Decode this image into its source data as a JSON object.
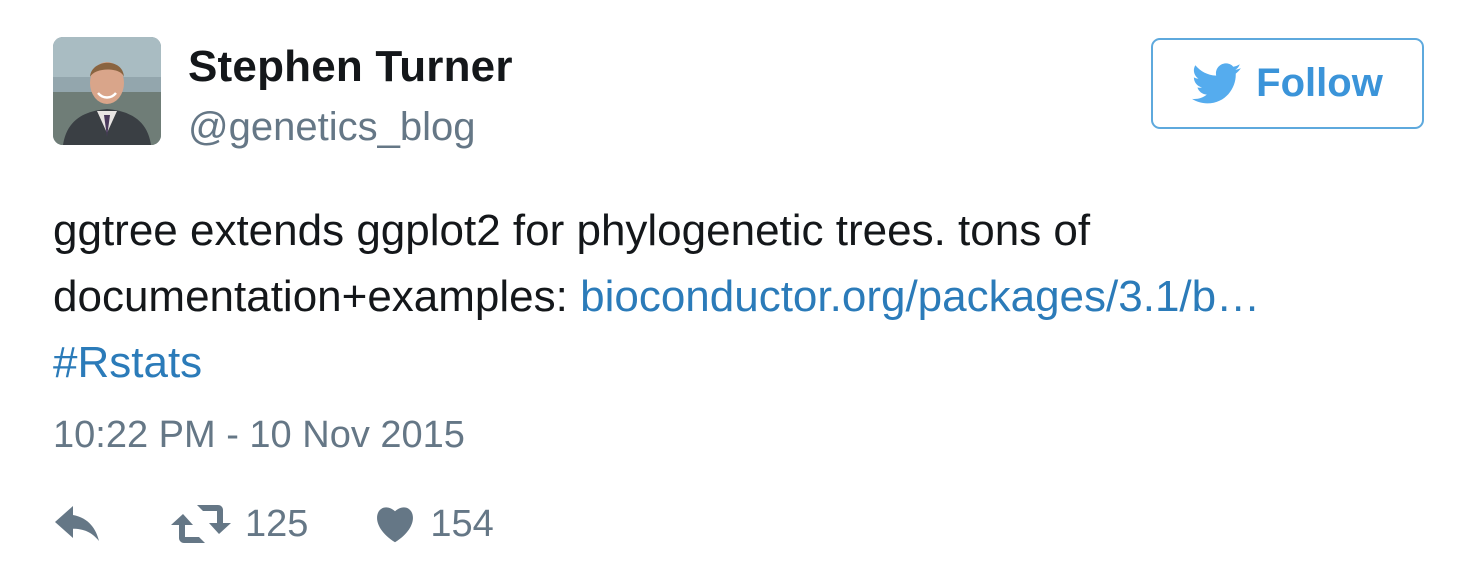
{
  "author": {
    "name": "Stephen Turner",
    "handle": "@genetics_blog"
  },
  "follow_button": {
    "label": "Follow",
    "icon": "twitter-bird-icon"
  },
  "tweet": {
    "text_line1": "ggtree extends ggplot2 for phylogenetic trees. tons of",
    "text_line2_prefix": "documentation+examples: ",
    "link_text": "bioconductor.org/packages/3.1/b…",
    "hashtag": "#Rstats",
    "timestamp": "10:22 PM - 10 Nov 2015"
  },
  "actions": {
    "reply_icon": "reply-icon",
    "retweet_icon": "retweet-icon",
    "retweet_count": "125",
    "like_icon": "heart-icon",
    "like_count": "154"
  },
  "colors": {
    "link": "#2b7bb9",
    "follow_border": "#5ea9dd",
    "follow_text": "#3b94d9",
    "muted": "#657786",
    "text": "#14171a"
  }
}
